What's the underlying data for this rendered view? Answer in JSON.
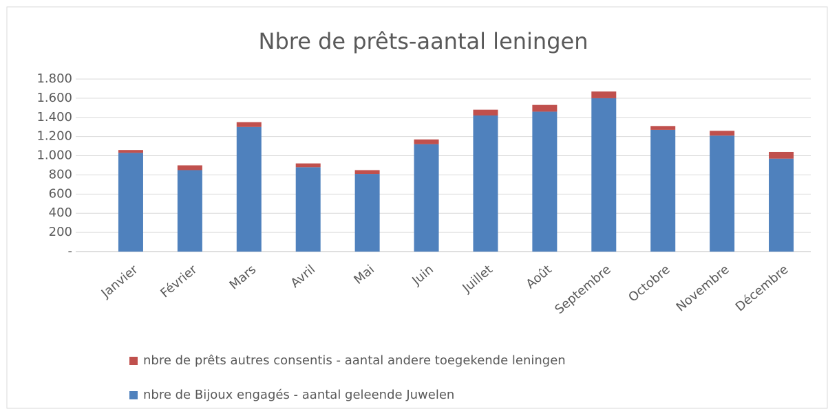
{
  "chart_data": {
    "type": "stacked_bar",
    "title": "Nbre de prêts-aantal leningen",
    "categories": [
      "Janvier",
      "Février",
      "Mars",
      "Avril",
      "Mai",
      "Juin",
      "Juillet",
      "Août",
      "Septembre",
      "Octobre",
      "Novembre",
      "Décembre"
    ],
    "series": [
      {
        "name": "nbre de Bijoux engagés - aantal geleende Juwelen",
        "color": "#4f81bd",
        "values": [
          1030,
          850,
          1300,
          880,
          810,
          1120,
          1420,
          1460,
          1600,
          1270,
          1210,
          970
        ]
      },
      {
        "name": "nbre de prêts autres consentis - aantal andere toegekende leningen",
        "color": "#c0504d",
        "values": [
          30,
          50,
          50,
          40,
          40,
          50,
          60,
          70,
          70,
          40,
          50,
          70
        ]
      }
    ],
    "ylim": [
      0,
      1800
    ],
    "yticks": [
      {
        "value": 0,
        "label": "-"
      },
      200,
      400,
      600,
      800,
      {
        "value": 1000,
        "label": "1.000"
      },
      {
        "value": 1200,
        "label": "1.200"
      },
      {
        "value": 1400,
        "label": "1.400"
      },
      {
        "value": 1600,
        "label": "1.600"
      },
      {
        "value": 1800,
        "label": "1.800"
      }
    ],
    "grid": true
  }
}
